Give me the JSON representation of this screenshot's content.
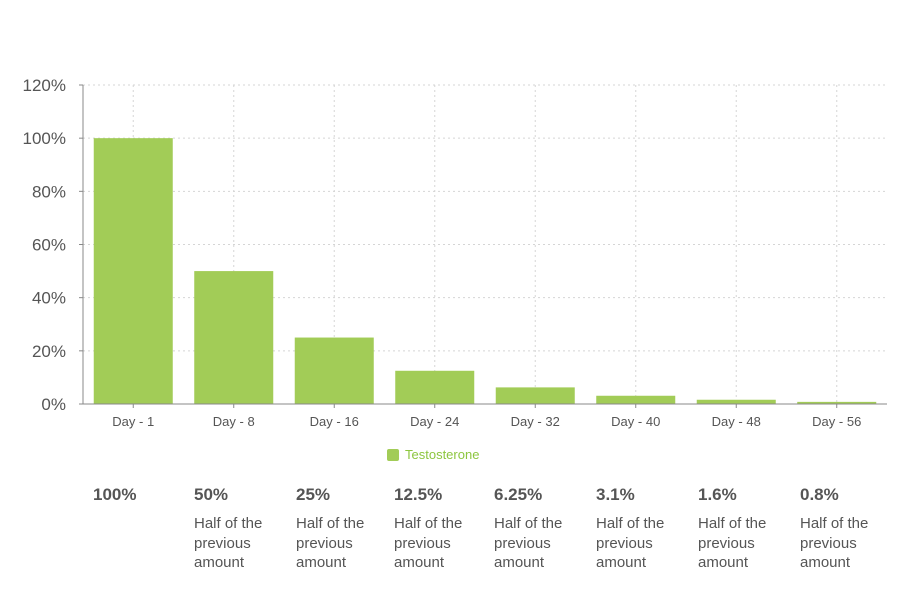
{
  "chart_data": {
    "type": "bar",
    "categories": [
      "Day - 1",
      "Day - 8",
      "Day - 16",
      "Day - 24",
      "Day - 32",
      "Day - 40",
      "Day - 48",
      "Day - 56"
    ],
    "series": [
      {
        "name": "Testosterone",
        "values": [
          100,
          50,
          25,
          12.5,
          6.25,
          3.1,
          1.6,
          0.8
        ]
      }
    ],
    "ylim": [
      0,
      120
    ],
    "yticks": [
      "0%",
      "20%",
      "40%",
      "60%",
      "80%",
      "100%",
      "120%"
    ],
    "grid": true,
    "legend_position": "bottom-center",
    "bar_color": "#a2cc57",
    "legend_text_color": "#8dc63f",
    "gridline_color": "#d5d5d5",
    "axis_color": "#888888"
  },
  "summary": [
    {
      "value": "100%",
      "note": []
    },
    {
      "value": "50%",
      "note": [
        "Half of the",
        "previous",
        "amount"
      ]
    },
    {
      "value": "25%",
      "note": [
        "Half of the",
        "previous",
        "amount"
      ]
    },
    {
      "value": "12.5%",
      "note": [
        "Half of the",
        "previous",
        "amount"
      ]
    },
    {
      "value": "6.25%",
      "note": [
        "Half of the",
        "previous",
        "amount"
      ]
    },
    {
      "value": "3.1%",
      "note": [
        "Half of the",
        "previous",
        "amount"
      ]
    },
    {
      "value": "1.6%",
      "note": [
        "Half of the",
        "previous",
        "amount"
      ]
    },
    {
      "value": "0.8%",
      "note": [
        "Half of the",
        "previous",
        "amount"
      ]
    }
  ]
}
